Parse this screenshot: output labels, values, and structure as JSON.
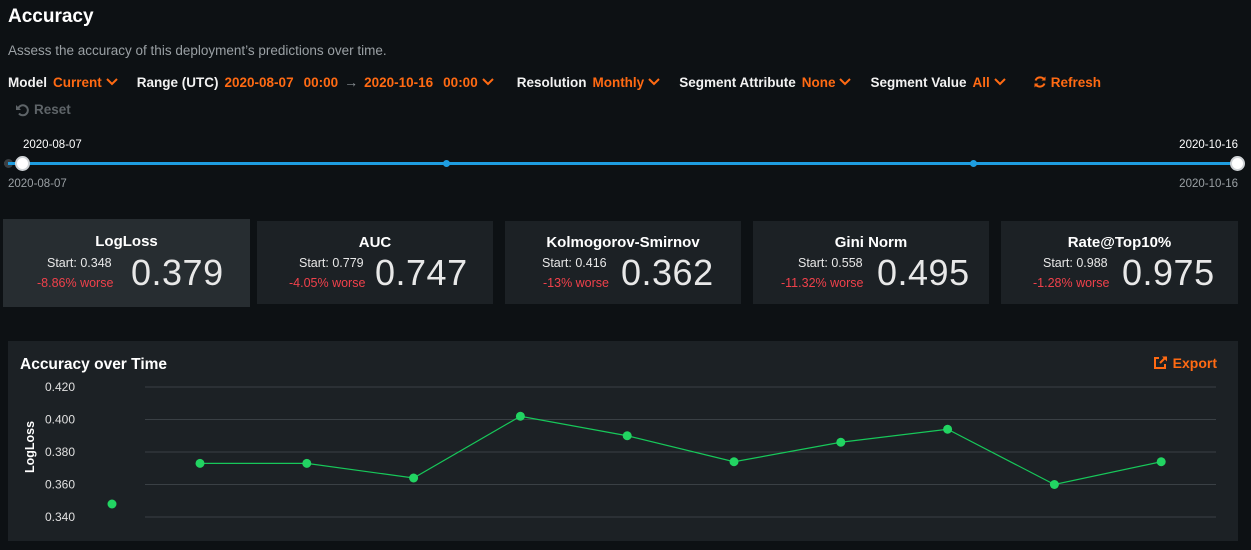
{
  "page": {
    "title": "Accuracy",
    "subtitle": "Assess the accuracy of this deployment’s predictions over time."
  },
  "filters": {
    "model_label": "Model",
    "model_value": "Current",
    "range_label": "Range (UTC)",
    "range_start_date": "2020-08-07",
    "range_start_time": "00:00",
    "range_end_date": "2020-10-16",
    "range_end_time": "00:00",
    "resolution_label": "Resolution",
    "resolution_value": "Monthly",
    "segment_attribute_label": "Segment Attribute",
    "segment_attribute_value": "None",
    "segment_value_label": "Segment Value",
    "segment_value_value": "All",
    "refresh_label": "Refresh",
    "reset_label": "Reset"
  },
  "slider": {
    "start_top": "2020-08-07",
    "end_top": "2020-10-16",
    "start_bottom": "2020-08-07",
    "end_bottom": "2020-10-16"
  },
  "metrics": [
    {
      "name": "LogLoss",
      "start": "Start: 0.348",
      "change": "-8.86% worse",
      "value": "0.379",
      "active": true
    },
    {
      "name": "AUC",
      "start": "Start: 0.779",
      "change": "-4.05% worse",
      "value": "0.747",
      "active": false
    },
    {
      "name": "Kolmogorov-Smirnov",
      "start": "Start: 0.416",
      "change": "-13% worse",
      "value": "0.362",
      "active": false
    },
    {
      "name": "Gini Norm",
      "start": "Start: 0.558",
      "change": "-11.32% worse",
      "value": "0.495",
      "active": false
    },
    {
      "name": "Rate@Top10%",
      "start": "Start: 0.988",
      "change": "-1.28% worse",
      "value": "0.975",
      "active": false
    }
  ],
  "chart": {
    "title": "Accuracy over Time",
    "export_label": "Export"
  },
  "chart_data": {
    "type": "line",
    "title": "Accuracy over Time",
    "xlabel": "",
    "ylabel": "LogLoss",
    "ylim": [
      0.34,
      0.42
    ],
    "yticks": [
      "0.420",
      "0.400",
      "0.380",
      "0.360",
      "0.340"
    ],
    "grid": true,
    "isolated_point": 0.348,
    "series": [
      {
        "values": [
          0.373,
          0.373,
          0.364,
          0.402,
          0.39,
          0.374,
          0.386,
          0.394,
          0.36,
          0.374
        ]
      }
    ],
    "colors": {
      "line": "#17c85a",
      "point": "#22d462"
    }
  },
  "colors": {
    "accent": "#ff6a13",
    "negative": "#f0414b",
    "track": "#1e9de0"
  }
}
